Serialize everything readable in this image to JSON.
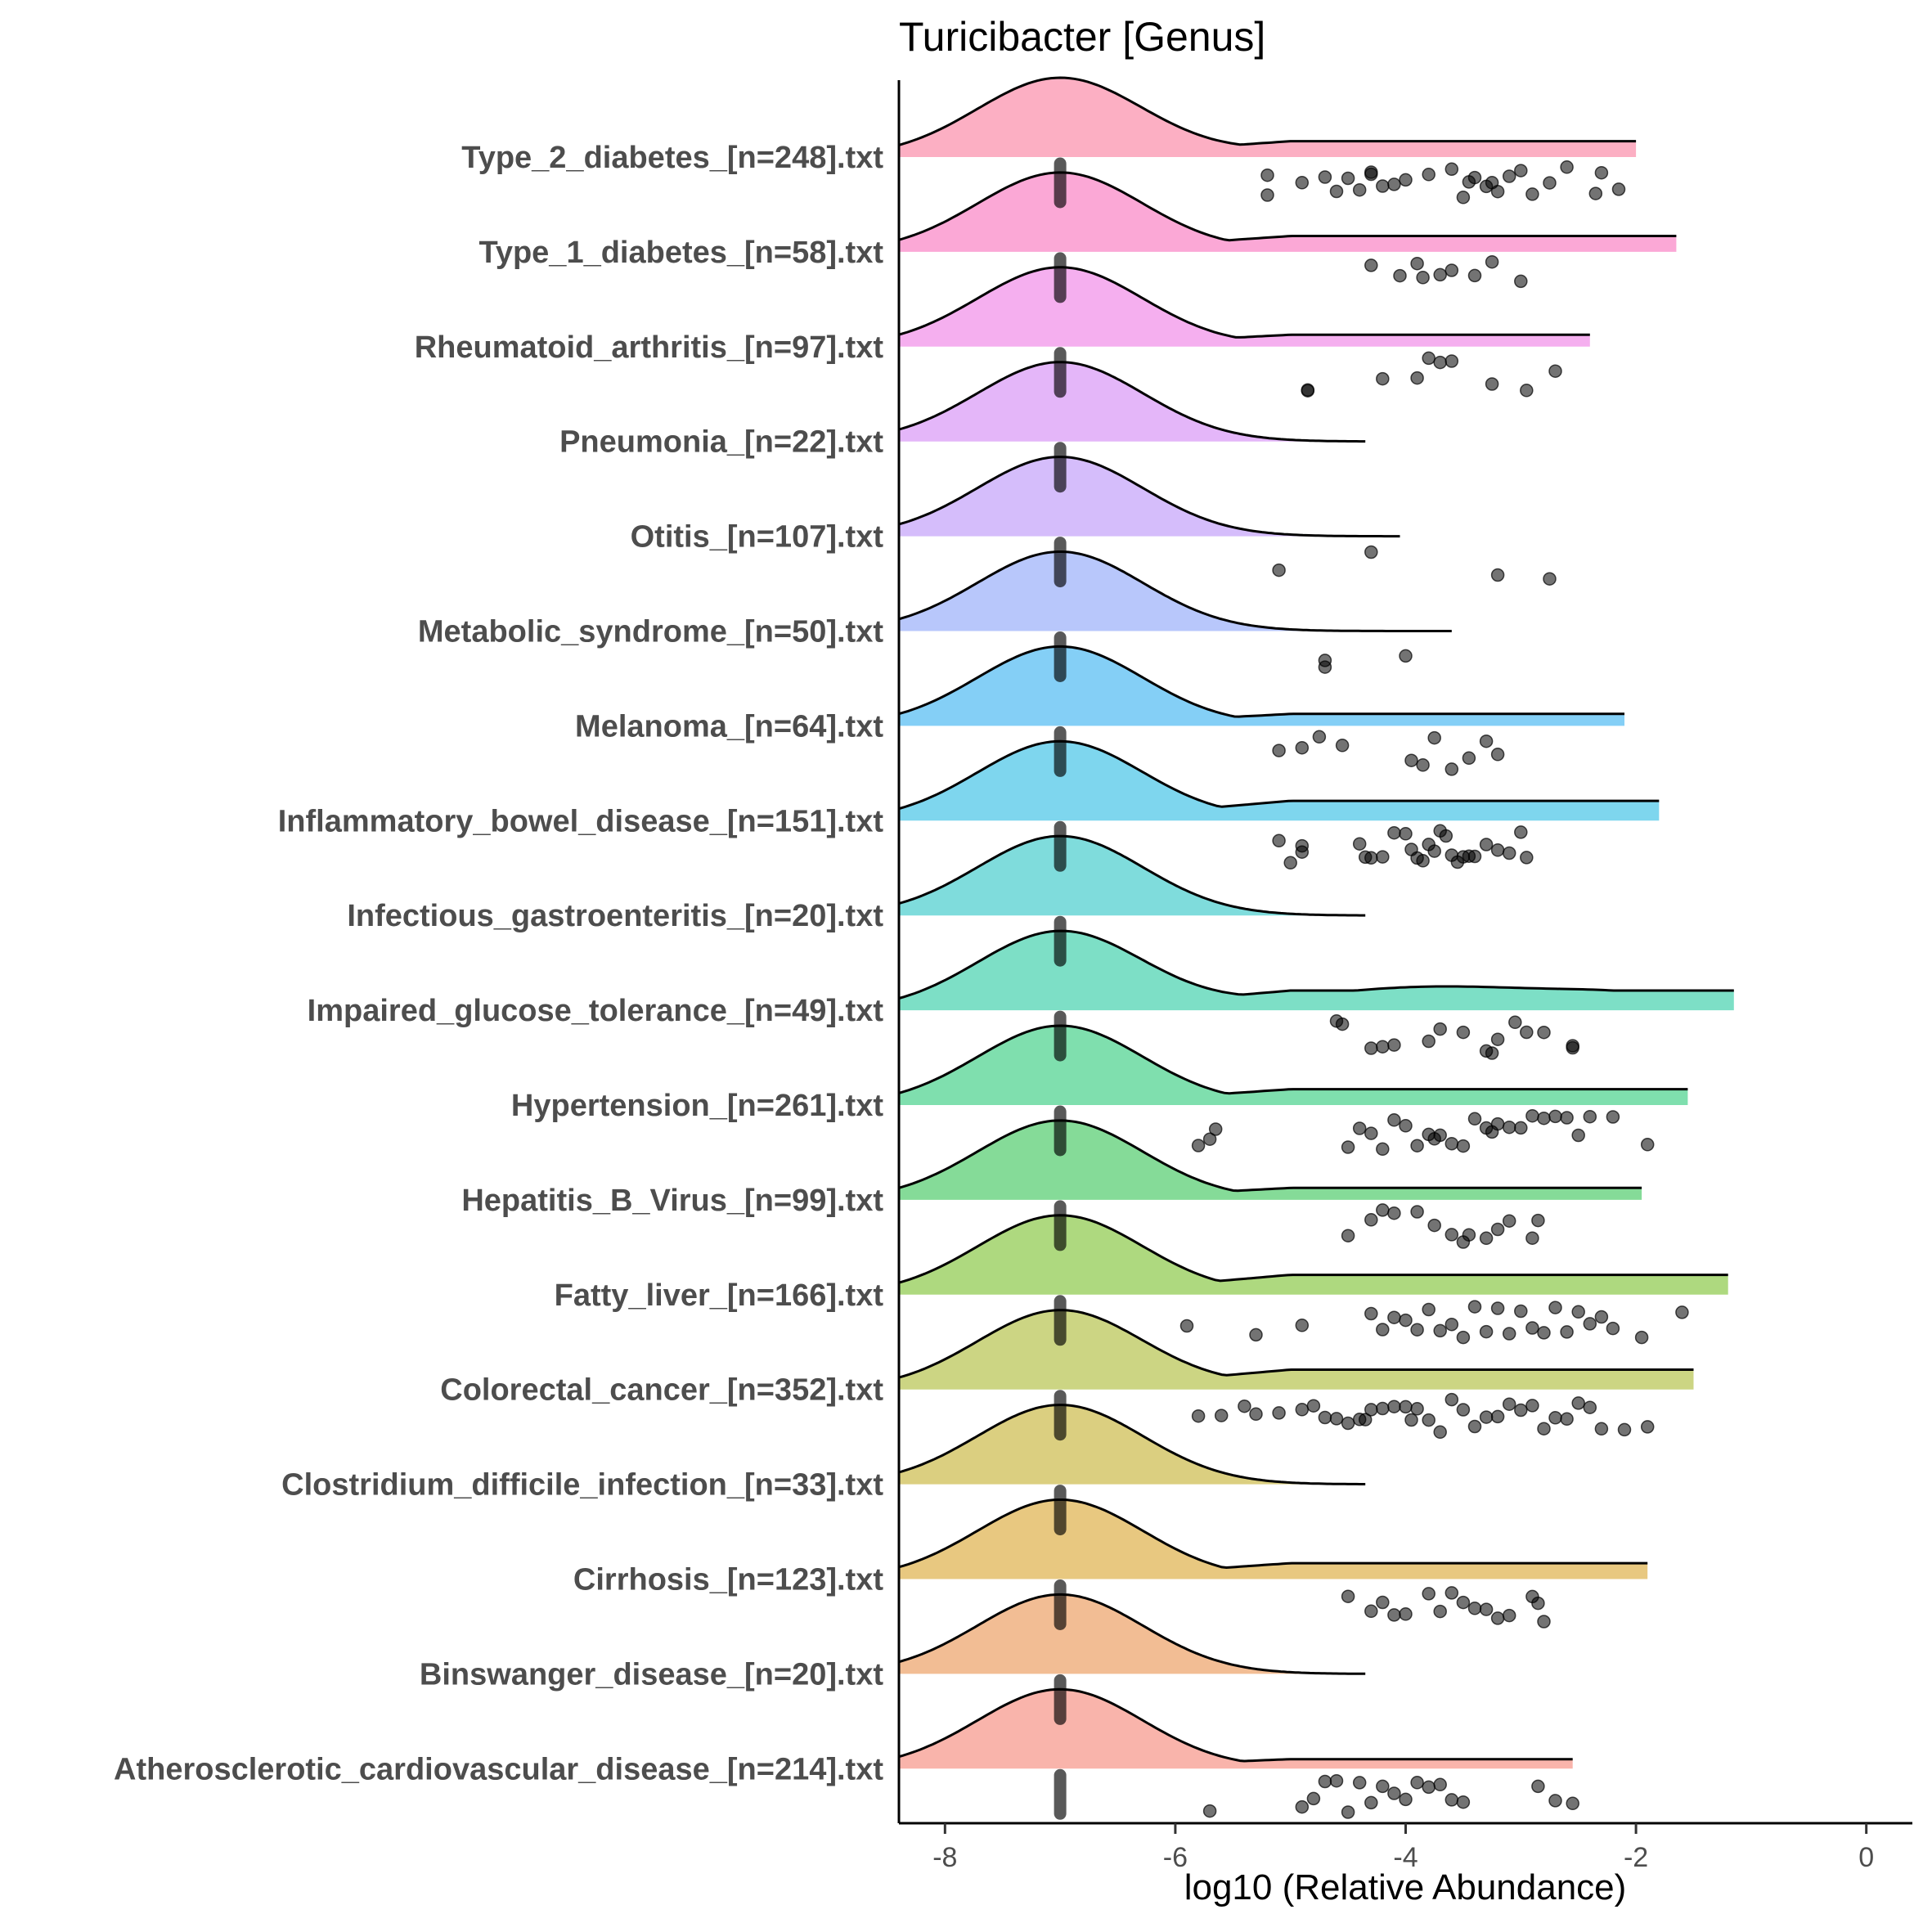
{
  "chart_data": {
    "type": "raincloud",
    "title": "Turicibacter [Genus]",
    "xlabel": "log10 (Relative Abundance)",
    "ylabel": "",
    "xlim": [
      -8.4,
      0.4
    ],
    "xticks": [
      -8,
      -6,
      -4,
      -2,
      0
    ],
    "xtick_labels": [
      "-8",
      "-6",
      "-4",
      "-2",
      "0"
    ],
    "grid": false,
    "legend": "none",
    "zero_value": -7,
    "categories": [
      {
        "label": "Type_2_diabetes_[n=248].txt",
        "color": "#fcafc3",
        "max": -2.0,
        "tail": 0.2,
        "dist": [
          [
            -4.5,
            0.12,
            0.8
          ],
          [
            -3.2,
            0.1,
            0.8
          ]
        ],
        "points": [
          -5.2,
          -5.2,
          -4.9,
          -4.7,
          -4.6,
          -4.5,
          -4.4,
          -4.3,
          -4.3,
          -4.2,
          -4.1,
          -4.0,
          -3.8,
          -3.6,
          -3.5,
          -3.45,
          -3.4,
          -3.3,
          -3.25,
          -3.2,
          -3.1,
          -3.0,
          -2.9,
          -2.75,
          -2.6,
          -2.35,
          -2.3,
          -2.15
        ]
      },
      {
        "label": "Type_1_diabetes_[n=58].txt",
        "color": "#fba8d6",
        "max": -1.65,
        "tail": 0.2,
        "dist": [
          [
            -4.0,
            0.1,
            0.8
          ],
          [
            -2.6,
            0.06,
            0.7
          ]
        ],
        "points": [
          -4.3,
          -4.05,
          -3.9,
          -3.85,
          -3.7,
          -3.6,
          -3.4,
          -3.25,
          -3.0
        ]
      },
      {
        "label": "Rheumatoid_arthritis_[n=97].txt",
        "color": "#f5afef",
        "max": -2.4,
        "tail": 0.15,
        "dist": [
          [
            -3.8,
            0.1,
            0.8
          ],
          [
            -2.8,
            0.06,
            0.6
          ]
        ],
        "points": [
          -4.85,
          -4.85,
          -4.2,
          -3.9,
          -3.8,
          -3.7,
          -3.6,
          -3.25,
          -2.95,
          -2.7
        ]
      },
      {
        "label": "Pneumonia_[n=22].txt",
        "color": "#e4b6f9",
        "max": -4.35,
        "tail": 0.0,
        "dist": [],
        "points": []
      },
      {
        "label": "Otitis_[n=107].txt",
        "color": "#d5bdfb",
        "max": -4.05,
        "tail": 0.0,
        "dist": [],
        "points": [
          -5.1,
          -4.3,
          -3.2,
          -2.75
        ]
      },
      {
        "label": "Metabolic_syndrome_[n=50].txt",
        "color": "#b8c7fb",
        "max": -3.6,
        "tail": 0.0,
        "dist": [],
        "points": [
          -4.7,
          -4.7,
          -4.0
        ]
      },
      {
        "label": "Melanoma_[n=64].txt",
        "color": "#84cff6",
        "max": -2.1,
        "tail": 0.15,
        "dist": [
          [
            -3.7,
            0.1,
            0.8
          ]
        ],
        "points": [
          -5.1,
          -4.9,
          -4.75,
          -4.55,
          -3.95,
          -3.85,
          -3.75,
          -3.6,
          -3.45,
          -3.3,
          -3.2
        ]
      },
      {
        "label": "Inflammatory_bowel_disease_[n=151].txt",
        "color": "#7ed6ee",
        "max": -1.8,
        "tail": 0.25,
        "dist": [
          [
            -3.5,
            0.18,
            1.0
          ],
          [
            -2.2,
            0.06,
            0.7
          ]
        ],
        "points": [
          -5.1,
          -5.0,
          -4.9,
          -4.9,
          -4.4,
          -4.35,
          -4.3,
          -4.2,
          -4.1,
          -4.0,
          -3.95,
          -3.9,
          -3.85,
          -3.8,
          -3.75,
          -3.7,
          -3.65,
          -3.6,
          -3.55,
          -3.5,
          -3.45,
          -3.4,
          -3.3,
          -3.2,
          -3.1,
          -3.0,
          -2.95
        ]
      },
      {
        "label": "Infectious_gastroenteritis_[n=20].txt",
        "color": "#7fdcdc",
        "max": -4.35,
        "tail": 0.0,
        "dist": [],
        "points": []
      },
      {
        "label": "Impaired_glucose_tolerance_[n=49].txt",
        "color": "#7ddfc6",
        "max": -1.15,
        "tail": 0.25,
        "dist": [
          [
            -3.7,
            0.3,
            1.2
          ],
          [
            -2.0,
            0.12,
            0.6
          ]
        ],
        "points": [
          -4.6,
          -4.55,
          -4.3,
          -4.2,
          -4.1,
          -3.8,
          -3.7,
          -3.5,
          -3.3,
          -3.25,
          -3.2,
          -3.05,
          -2.95,
          -2.8,
          -2.55,
          -2.55
        ]
      },
      {
        "label": "Hypertension_[n=261].txt",
        "color": "#7fdfae",
        "max": -1.55,
        "tail": 0.2,
        "dist": [
          [
            -3.3,
            0.15,
            1.0
          ]
        ],
        "points": [
          -5.8,
          -5.7,
          -5.65,
          -4.5,
          -4.4,
          -4.3,
          -4.2,
          -4.1,
          -4.0,
          -3.9,
          -3.8,
          -3.75,
          -3.7,
          -3.6,
          -3.5,
          -3.4,
          -3.3,
          -3.25,
          -3.2,
          -3.1,
          -3.0,
          -2.9,
          -2.8,
          -2.7,
          -2.6,
          -2.5,
          -2.4,
          -2.2,
          -1.9
        ]
      },
      {
        "label": "Hepatitis_B_Virus_[n=99].txt",
        "color": "#85db98",
        "max": -1.95,
        "tail": 0.15,
        "dist": [
          [
            -3.5,
            0.1,
            0.8
          ]
        ],
        "points": [
          -4.5,
          -4.3,
          -4.2,
          -4.1,
          -3.9,
          -3.75,
          -3.6,
          -3.5,
          -3.45,
          -3.3,
          -3.2,
          -3.1,
          -2.9,
          -2.85
        ]
      },
      {
        "label": "Fatty_liver_[n=166].txt",
        "color": "#aed97f",
        "max": -1.2,
        "tail": 0.25,
        "dist": [
          [
            -3.3,
            0.18,
            1.0
          ]
        ],
        "points": [
          -5.9,
          -5.3,
          -4.9,
          -4.3,
          -4.2,
          -4.1,
          -4.0,
          -3.9,
          -3.8,
          -3.7,
          -3.6,
          -3.5,
          -3.4,
          -3.3,
          -3.2,
          -3.1,
          -3.0,
          -2.9,
          -2.8,
          -2.7,
          -2.6,
          -2.5,
          -2.4,
          -2.3,
          -2.2,
          -1.95,
          -1.6
        ]
      },
      {
        "label": "Colorectal_cancer_[n=352].txt",
        "color": "#ccd583",
        "max": -1.5,
        "tail": 0.25,
        "dist": [
          [
            -3.6,
            0.15,
            1.2
          ]
        ],
        "points": [
          -5.8,
          -5.6,
          -5.4,
          -5.3,
          -5.1,
          -4.9,
          -4.8,
          -4.7,
          -4.6,
          -4.5,
          -4.4,
          -4.35,
          -4.3,
          -4.2,
          -4.1,
          -4.0,
          -3.95,
          -3.9,
          -3.8,
          -3.7,
          -3.6,
          -3.5,
          -3.4,
          -3.3,
          -3.2,
          -3.1,
          -3.0,
          -2.9,
          -2.8,
          -2.7,
          -2.6,
          -2.5,
          -2.4,
          -2.3,
          -2.1,
          -1.9
        ]
      },
      {
        "label": "Clostridium_difficile_infection_[n=33].txt",
        "color": "#dbcf80",
        "max": -4.35,
        "tail": 0.0,
        "dist": [],
        "points": []
      },
      {
        "label": "Cirrhosis_[n=123].txt",
        "color": "#e8c880",
        "max": -1.9,
        "tail": 0.2,
        "dist": [
          [
            -3.2,
            0.08,
            0.8
          ],
          [
            -2.4,
            0.05,
            0.5
          ]
        ],
        "points": [
          -4.5,
          -4.3,
          -4.2,
          -4.1,
          -4.0,
          -3.8,
          -3.7,
          -3.6,
          -3.5,
          -3.4,
          -3.3,
          -3.2,
          -3.1,
          -2.9,
          -2.85,
          -2.8
        ]
      },
      {
        "label": "Binswanger_disease_[n=20].txt",
        "color": "#f2bd94",
        "max": -4.35,
        "tail": 0.0,
        "dist": [],
        "points": []
      },
      {
        "label": "Atherosclerotic_cardiovascular_disease_[n=214].txt",
        "color": "#f9b4ab",
        "max": -2.55,
        "tail": 0.12,
        "dist": [
          [
            -3.5,
            0.1,
            0.8
          ]
        ],
        "points": [
          -5.7,
          -4.9,
          -4.8,
          -4.7,
          -4.6,
          -4.5,
          -4.4,
          -4.3,
          -4.2,
          -4.1,
          -4.0,
          -3.9,
          -3.8,
          -3.7,
          -3.6,
          -3.5,
          -2.85,
          -2.7,
          -2.55
        ]
      }
    ]
  }
}
